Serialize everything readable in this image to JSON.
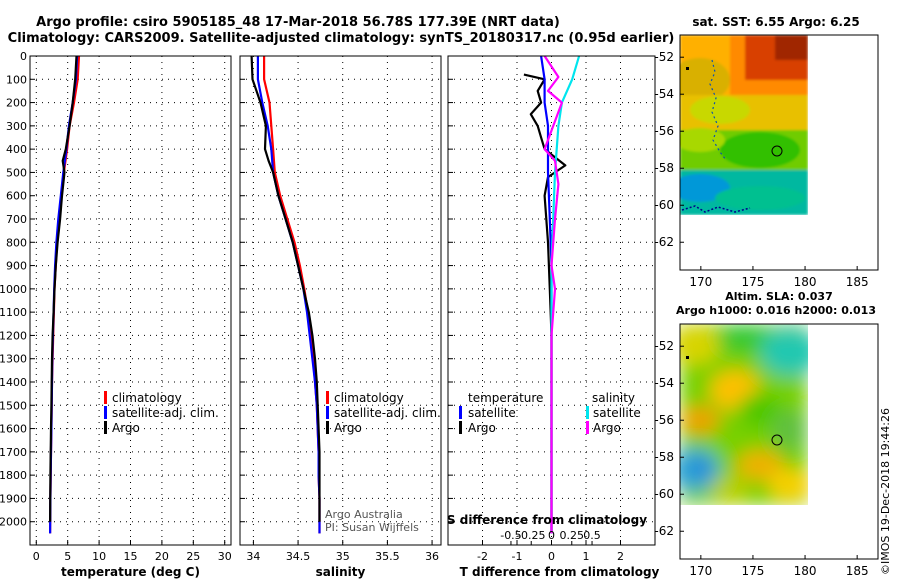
{
  "header": {
    "title_line1": "Argo profile: csiro 5905185_48 17-Mar-2018 56.78S 177.39E (NRT data)",
    "title_line2": "Climatology: CARS2009. Satellite-adjusted climatology: synTS_20180317.nc (0.95d earlier)"
  },
  "credit": "©IMOS 19-Dec-2018 19:44:26",
  "colors": {
    "climatology": "#ff0000",
    "satellite": "#0000ff",
    "argo": "#000000",
    "satellite_s": "#00e5ee",
    "argo_s": "#ff00ff"
  },
  "chart_data": [
    {
      "type": "line",
      "id": "temperature",
      "xlabel": "temperature (deg C)",
      "ylabel": "",
      "xlim": [
        -1,
        31
      ],
      "ylim": [
        2100,
        0
      ],
      "xticks": [
        0,
        5,
        10,
        15,
        20,
        25,
        30
      ],
      "yticks": [
        0,
        100,
        200,
        300,
        400,
        500,
        600,
        700,
        800,
        900,
        1000,
        1100,
        1200,
        1300,
        1400,
        1500,
        1600,
        1700,
        1800,
        1900,
        2000
      ],
      "legend": [
        "climatology",
        "satellite-adj. clim.",
        "Argo"
      ],
      "series": [
        {
          "name": "climatology",
          "color": "#ff0000",
          "x": [
            6.8,
            6.6,
            6.0,
            5.3,
            4.9,
            4.4,
            4.0,
            3.6,
            3.3,
            3.1,
            2.9,
            2.8,
            2.7,
            2.6,
            2.5,
            2.45,
            2.4,
            2.35,
            2.3,
            2.25,
            2.2
          ],
          "depth": [
            0,
            100,
            200,
            300,
            400,
            500,
            600,
            700,
            800,
            900,
            1000,
            1100,
            1200,
            1300,
            1400,
            1500,
            1600,
            1700,
            1800,
            1900,
            2050
          ]
        },
        {
          "name": "satellite-adj. clim.",
          "color": "#0000ff",
          "x": [
            6.5,
            6.3,
            5.8,
            5.2,
            4.8,
            4.3,
            3.9,
            3.5,
            3.2,
            3.0,
            2.85,
            2.75,
            2.65,
            2.55,
            2.5,
            2.45,
            2.4,
            2.35,
            2.3,
            2.25,
            2.2
          ],
          "depth": [
            0,
            100,
            200,
            300,
            400,
            500,
            600,
            700,
            800,
            900,
            1000,
            1100,
            1200,
            1300,
            1400,
            1500,
            1600,
            1700,
            1800,
            1900,
            2050
          ]
        },
        {
          "name": "Argo",
          "color": "#000000",
          "x": [
            6.4,
            6.2,
            5.8,
            5.3,
            4.7,
            4.2,
            4.5,
            4.1,
            3.8,
            3.4,
            3.1,
            2.9,
            2.75,
            2.6,
            2.5,
            2.45,
            2.4,
            2.35,
            2.3,
            2.25,
            2.2
          ],
          "depth": [
            0,
            100,
            200,
            300,
            400,
            450,
            500,
            600,
            700,
            800,
            900,
            1000,
            1100,
            1200,
            1300,
            1400,
            1500,
            1600,
            1700,
            1800,
            2000
          ]
        }
      ]
    },
    {
      "type": "line",
      "id": "salinity",
      "xlabel": "salinity",
      "xlim": [
        33.85,
        36.1
      ],
      "ylim": [
        2100,
        0
      ],
      "xticks": [
        34,
        34.5,
        35,
        35.5,
        36
      ],
      "xticklabels": [
        "34",
        "34.5",
        "35",
        "35.5",
        "36"
      ],
      "legend": [
        "climatology",
        "satellite-adj. clim.",
        "Argo"
      ],
      "annotation": [
        "Argo Australia",
        "PI: Susan Wijffels"
      ],
      "series": [
        {
          "name": "climatology",
          "color": "#ff0000",
          "x": [
            34.12,
            34.12,
            34.18,
            34.2,
            34.22,
            34.24,
            34.3,
            34.38,
            34.46,
            34.52,
            34.57,
            34.61,
            34.64,
            34.67,
            34.69,
            34.71,
            34.72,
            34.73,
            34.73,
            34.74,
            34.74
          ],
          "depth": [
            0,
            100,
            200,
            300,
            400,
            500,
            600,
            700,
            800,
            900,
            1000,
            1100,
            1200,
            1300,
            1400,
            1500,
            1600,
            1700,
            1800,
            1900,
            2050
          ]
        },
        {
          "name": "satellite-adj. clim.",
          "color": "#0000ff",
          "x": [
            34.05,
            34.05,
            34.1,
            34.16,
            34.2,
            34.22,
            34.28,
            34.36,
            34.44,
            34.5,
            34.56,
            34.6,
            34.63,
            34.66,
            34.69,
            34.71,
            34.72,
            34.73,
            34.73,
            34.74,
            34.74
          ],
          "depth": [
            0,
            100,
            200,
            300,
            400,
            500,
            600,
            700,
            800,
            900,
            1000,
            1100,
            1200,
            1300,
            1400,
            1500,
            1600,
            1700,
            1800,
            1900,
            2050
          ]
        },
        {
          "name": "Argo",
          "color": "#000000",
          "x": [
            33.98,
            33.99,
            34.08,
            34.14,
            34.13,
            34.17,
            34.22,
            34.28,
            34.36,
            34.44,
            34.5,
            34.56,
            34.62,
            34.66,
            34.69,
            34.71,
            34.72,
            34.73,
            34.74,
            34.74
          ],
          "depth": [
            0,
            100,
            200,
            300,
            400,
            450,
            500,
            600,
            700,
            800,
            900,
            1000,
            1100,
            1200,
            1300,
            1400,
            1500,
            1600,
            1700,
            2000
          ]
        }
      ]
    },
    {
      "type": "line",
      "id": "difference",
      "xlabel": "T difference from climatology",
      "xlabel_top": "S difference from climatology",
      "xlim": [
        -3,
        3
      ],
      "ylim": [
        2100,
        0
      ],
      "xticks": [
        -2,
        -1,
        0,
        1,
        2
      ],
      "top_ticks": [
        -0.5,
        -0.25,
        0,
        0.25,
        0.5
      ],
      "top_ticklabels": [
        "-0.5",
        "-0.25",
        "0",
        "0.25",
        "0.5"
      ],
      "legend": {
        "temperature": "temperature",
        "salinity": "salinity",
        "t_satellite": "satellite",
        "t_argo": "Argo",
        "s_satellite": "satellite",
        "s_argo": "Argo"
      },
      "series": [
        {
          "name": "T argo-clim",
          "color": "#000000",
          "x": [
            -0.8,
            -0.2,
            -0.4,
            -0.3,
            -0.6,
            -0.4,
            -0.3,
            -0.2,
            0.4,
            -0.1,
            -0.2,
            -0.1,
            -0.05,
            0.0,
            0.0,
            0.0,
            0.0,
            0.0,
            0.0,
            0.0
          ],
          "depth": [
            80,
            100,
            150,
            200,
            250,
            300,
            350,
            400,
            470,
            520,
            600,
            800,
            1000,
            1200,
            1400,
            1600,
            1800,
            1900,
            2000,
            2050
          ]
        },
        {
          "name": "T satellite-clim",
          "color": "#0000ff",
          "x": [
            -0.3,
            -0.2,
            -0.2,
            -0.1,
            -0.1,
            -0.1,
            -0.05,
            0.0,
            0.0,
            0.0,
            0.0
          ],
          "depth": [
            0,
            100,
            200,
            300,
            400,
            500,
            700,
            900,
            1200,
            1600,
            2050
          ]
        },
        {
          "name": "S satellite-clim",
          "color": "#00e5ee",
          "x": [
            0.8,
            0.6,
            0.3,
            0.2,
            0.1,
            0.05,
            0.0,
            0.0,
            0.0,
            0.0
          ],
          "depth": [
            0,
            100,
            200,
            300,
            500,
            700,
            900,
            1200,
            1600,
            2050
          ]
        },
        {
          "name": "S argo-clim",
          "color": "#ff00ff",
          "x": [
            -0.2,
            0.2,
            -0.1,
            0.3,
            -0.2,
            0.1,
            0.2,
            0.1,
            0.0,
            0.1,
            0.0,
            0.0,
            0.0,
            0.0
          ],
          "depth": [
            0,
            90,
            150,
            200,
            400,
            450,
            550,
            700,
            900,
            1000,
            1200,
            1500,
            1800,
            2050
          ]
        }
      ]
    },
    {
      "type": "heatmap",
      "id": "sst_map",
      "title": "sat. SST: 6.55 Argo: 6.25",
      "xlim": [
        168,
        187
      ],
      "ylim": [
        -63.5,
        -50.8
      ],
      "xticks": [
        170,
        175,
        180,
        185
      ],
      "yticks": [
        -52,
        -54,
        -56,
        -58,
        -60,
        -62
      ],
      "profile_location": {
        "lon": 177.39,
        "lat": -56.78
      }
    },
    {
      "type": "heatmap",
      "id": "sla_map",
      "title_line1": "Altim. SLA: 0.037",
      "title_line2": "Argo h1000: 0.016 h2000: 0.013",
      "xlim": [
        168,
        187
      ],
      "ylim": [
        -63.5,
        -50.8
      ],
      "xticks": [
        170,
        175,
        180,
        185
      ],
      "yticks": [
        -52,
        -54,
        -56,
        -58,
        -60,
        -62
      ],
      "profile_location": {
        "lon": 177.39,
        "lat": -56.78
      }
    }
  ]
}
